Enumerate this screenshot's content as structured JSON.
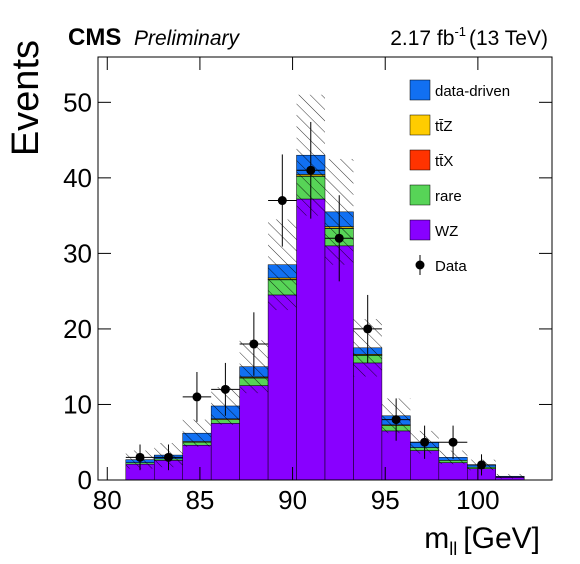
{
  "chart_data": {
    "type": "stacked-histogram",
    "experiment": "CMS",
    "status": "Preliminary",
    "lumi": {
      "text": "2.17 fb",
      "sup": "-1",
      "suffix": "(13 TeV)"
    },
    "y_label": "Events",
    "x_label": {
      "main": "m",
      "sub": "ll",
      "unit": "[GeV]"
    },
    "bins": [
      81,
      82.536,
      84.071,
      85.607,
      87.143,
      88.679,
      90.214,
      91.75,
      93.286,
      94.821,
      96.357,
      97.893,
      99.429,
      100.964,
      102.5
    ],
    "series": [
      {
        "name": "data-driven",
        "color": "#1170f2",
        "values": [
          0.4,
          0.5,
          1.1,
          1.7,
          1.35,
          1.75,
          2.55,
          1.95,
          0.85,
          1.2,
          0.7,
          0.4,
          0.3,
          0.1
        ]
      },
      {
        "name": "tt̄Z",
        "color": "#ffcc00",
        "values": [
          0,
          0,
          0.1,
          0.1,
          0.1,
          0.2,
          0.2,
          0.2,
          0.1,
          0.1,
          0,
          0,
          0,
          0
        ]
      },
      {
        "name": "tt̄X",
        "color": "#ff3300",
        "values": [
          0,
          0,
          0,
          0,
          0.05,
          0.05,
          0.05,
          0.05,
          0.05,
          0,
          0,
          0,
          0,
          0
        ]
      },
      {
        "name": "rare",
        "color": "#57d457",
        "values": [
          0.2,
          0.2,
          0.4,
          0.5,
          1.0,
          2.0,
          3.0,
          2.3,
          1.0,
          0.7,
          0.4,
          0.3,
          0.2,
          0.05
        ]
      },
      {
        "name": "WZ",
        "color": "#8800ff",
        "values": [
          2.1,
          2.6,
          4.6,
          7.5,
          12.5,
          24.5,
          37.2,
          31,
          15.5,
          6.5,
          3.9,
          2.3,
          1.5,
          0.35
        ]
      }
    ],
    "uncertainty": [
      1.2,
      1.6,
      1.8,
      2.5,
      3.5,
      6,
      8,
      7,
      3.8,
      2.3,
      1.5,
      0.9,
      0.7,
      0.3
    ],
    "data": {
      "name": "Data",
      "values": [
        3,
        3,
        11,
        12,
        18,
        37,
        41,
        32,
        20,
        8,
        5,
        5,
        2,
        null
      ],
      "errors": [
        1.7,
        1.7,
        3.3,
        3.5,
        4.2,
        6.1,
        6.4,
        5.7,
        4.5,
        2.8,
        2.2,
        2.2,
        1.4,
        null
      ]
    },
    "xlim": [
      79.5,
      104
    ],
    "ylim": [
      0,
      56
    ],
    "xticks": [
      80,
      85,
      90,
      95,
      100
    ],
    "yticks": [
      0,
      10,
      20,
      30,
      40,
      50
    ]
  }
}
